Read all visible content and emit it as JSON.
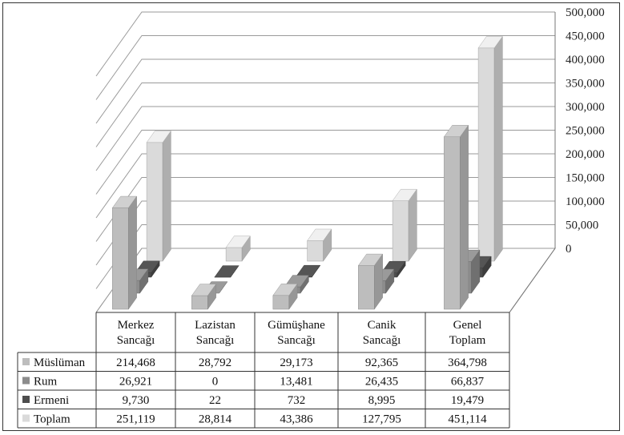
{
  "chart_data": {
    "type": "bar",
    "style": "3d-clustered-column-with-data-table",
    "categories": [
      [
        "Merkez",
        "Sancağı"
      ],
      [
        "Lazistan",
        "Sancağı"
      ],
      [
        "Gümüşhane",
        "Sancağı"
      ],
      [
        "Canik",
        "Sancağı"
      ],
      [
        "Genel",
        "Toplam"
      ]
    ],
    "series": [
      {
        "name": "Müslüman",
        "values": [
          214468,
          28792,
          29173,
          92365,
          364798
        ],
        "color": "#bdbdbd",
        "display": [
          "214,468",
          "28,792",
          "29,173",
          "92,365",
          "364,798"
        ]
      },
      {
        "name": "Rum",
        "values": [
          26921,
          0,
          13481,
          26435,
          66837
        ],
        "color": "#8c8c8c",
        "display": [
          "26,921",
          "0",
          "13,481",
          "26,435",
          "66,837"
        ]
      },
      {
        "name": "Ermeni",
        "values": [
          9730,
          22,
          732,
          8995,
          19479
        ],
        "color": "#4d4d4d",
        "display": [
          "9,730",
          "22",
          "732",
          "8,995",
          "19,479"
        ]
      },
      {
        "name": "Toplam",
        "values": [
          251119,
          28814,
          43386,
          127795,
          451114
        ],
        "color": "#dadada",
        "display": [
          "251,119",
          "28,814",
          "43,386",
          "127,795",
          "451,114"
        ]
      }
    ],
    "yticks": [
      "0",
      "50,000",
      "100,000",
      "150,000",
      "200,000",
      "250,000",
      "300,000",
      "350,000",
      "400,000",
      "450,000",
      "500,000"
    ],
    "ylim": [
      0,
      500000
    ],
    "grid": true,
    "legend": "in-data-table"
  }
}
